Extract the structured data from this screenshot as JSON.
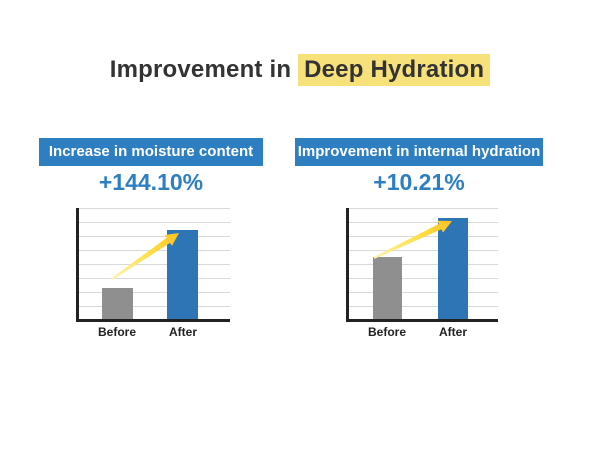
{
  "title": {
    "prefix": "Improvement in",
    "highlight": "Deep Hydration"
  },
  "panels": [
    {
      "banner": "Increase in moisture content",
      "percent": "+144.10%",
      "categories": [
        "Before",
        "After"
      ],
      "bar_heights_pct": [
        28,
        80
      ]
    },
    {
      "banner": "Improvement in internal hydration",
      "percent": "+10.21%",
      "categories": [
        "Before",
        "After"
      ],
      "bar_heights_pct": [
        56,
        91
      ]
    }
  ],
  "colors": {
    "accent_blue": "#2d7fc2",
    "bar_blue": "#2e75b6",
    "bar_gray": "#8f8f8f",
    "highlight_yellow": "#f7e17a",
    "arrow_yellow": "#ffd23b",
    "gridline": "#d9d9d9",
    "axis": "#222222",
    "title_text": "#333333"
  },
  "chart_data": [
    {
      "type": "bar",
      "title": "Increase in moisture content",
      "annotation": "+144.10%",
      "categories": [
        "Before",
        "After"
      ],
      "values": [
        28,
        80
      ],
      "values_unit": "relative bar height, % of axis (no numeric axis labels shown)",
      "ylim": [
        0,
        100
      ],
      "grid": true,
      "legend": false,
      "series_colors": [
        "#8f8f8f",
        "#2e75b6"
      ],
      "annotation_arrow": "yellow arrow from Before toward top of After bar"
    },
    {
      "type": "bar",
      "title": "Improvement in internal hydration",
      "annotation": "+10.21%",
      "categories": [
        "Before",
        "After"
      ],
      "values": [
        56,
        91
      ],
      "values_unit": "relative bar height, % of axis (no numeric axis labels shown)",
      "ylim": [
        0,
        100
      ],
      "grid": true,
      "legend": false,
      "series_colors": [
        "#8f8f8f",
        "#2e75b6"
      ],
      "annotation_arrow": "yellow arrow from top of Before bar toward top of After bar"
    }
  ]
}
